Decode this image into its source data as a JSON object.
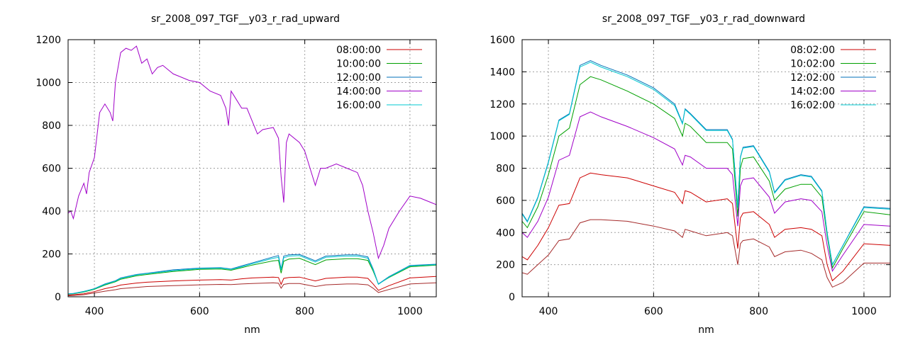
{
  "chart_data": [
    {
      "type": "line",
      "title": "sr_2008_097_TGF__y03_r_rad_upward",
      "xlabel": "nm",
      "ylabel": "",
      "xlim": [
        350,
        1050
      ],
      "ylim": [
        0,
        1200
      ],
      "xticks": [
        400,
        600,
        800,
        1000
      ],
      "yticks": [
        0,
        200,
        400,
        600,
        800,
        1000,
        1200
      ],
      "grid": true,
      "legend_position": "top-right",
      "series": [
        {
          "name": "08:00:00",
          "color": "#a52a2a",
          "x": [
            350,
            360,
            380,
            400,
            420,
            440,
            450,
            480,
            500,
            550,
            600,
            640,
            660,
            680,
            700,
            740,
            750,
            755,
            760,
            770,
            790,
            820,
            840,
            880,
            900,
            920,
            930,
            940,
            960,
            1000,
            1050
          ],
          "y": [
            5,
            6,
            10,
            18,
            26,
            33,
            38,
            44,
            48,
            52,
            56,
            58,
            57,
            60,
            62,
            65,
            63,
            40,
            58,
            62,
            62,
            48,
            56,
            60,
            60,
            56,
            40,
            20,
            34,
            60,
            65
          ]
        },
        {
          "name": "08:00:00",
          "color": "#cc0000",
          "x": [
            350,
            360,
            380,
            400,
            420,
            440,
            450,
            480,
            500,
            550,
            600,
            640,
            660,
            680,
            700,
            740,
            750,
            755,
            760,
            770,
            790,
            820,
            840,
            880,
            900,
            920,
            930,
            940,
            960,
            1000,
            1050
          ],
          "y": [
            8,
            10,
            14,
            24,
            38,
            48,
            55,
            64,
            68,
            74,
            78,
            80,
            78,
            84,
            88,
            92,
            90,
            58,
            86,
            90,
            92,
            74,
            86,
            92,
            92,
            86,
            60,
            30,
            52,
            88,
            95
          ]
        },
        {
          "name": "10:00:00",
          "color": "#00a000",
          "x": [
            350,
            360,
            380,
            400,
            420,
            440,
            450,
            480,
            500,
            550,
            600,
            640,
            660,
            680,
            700,
            740,
            750,
            755,
            760,
            770,
            790,
            820,
            840,
            880,
            900,
            920,
            930,
            940,
            960,
            1000,
            1050
          ],
          "y": [
            12,
            14,
            22,
            35,
            55,
            70,
            82,
            98,
            104,
            118,
            128,
            130,
            124,
            136,
            148,
            168,
            170,
            110,
            166,
            176,
            180,
            150,
            172,
            178,
            178,
            170,
            120,
            60,
            90,
            140,
            148
          ]
        },
        {
          "name": "12:00:00",
          "color": "#0072b8",
          "x": [
            350,
            360,
            380,
            400,
            420,
            440,
            450,
            480,
            500,
            550,
            600,
            640,
            660,
            680,
            700,
            740,
            750,
            755,
            760,
            770,
            790,
            820,
            840,
            880,
            900,
            920,
            930,
            940,
            960,
            1000,
            1050
          ],
          "y": [
            14,
            16,
            25,
            38,
            60,
            75,
            88,
            104,
            110,
            126,
            134,
            136,
            130,
            144,
            158,
            186,
            192,
            130,
            190,
            196,
            198,
            168,
            190,
            196,
            196,
            186,
            130,
            60,
            94,
            146,
            152
          ]
        },
        {
          "name": "14:00:00",
          "color": "#a000c8",
          "x": [
            350,
            355,
            360,
            370,
            380,
            385,
            390,
            400,
            410,
            420,
            430,
            435,
            440,
            450,
            460,
            470,
            480,
            490,
            500,
            510,
            520,
            530,
            540,
            550,
            560,
            580,
            600,
            620,
            640,
            650,
            655,
            660,
            670,
            680,
            690,
            700,
            710,
            720,
            740,
            750,
            755,
            760,
            765,
            770,
            790,
            800,
            820,
            830,
            840,
            860,
            880,
            900,
            910,
            920,
            930,
            940,
            950,
            960,
            980,
            1000,
            1020,
            1040,
            1050
          ],
          "y": [
            390,
            400,
            365,
            470,
            530,
            480,
            580,
            650,
            860,
            900,
            860,
            820,
            1000,
            1140,
            1160,
            1150,
            1170,
            1090,
            1110,
            1040,
            1070,
            1080,
            1060,
            1040,
            1030,
            1010,
            1000,
            960,
            940,
            880,
            800,
            960,
            920,
            880,
            880,
            820,
            760,
            780,
            790,
            740,
            560,
            440,
            720,
            760,
            720,
            680,
            520,
            600,
            600,
            620,
            600,
            580,
            520,
            400,
            300,
            180,
            240,
            320,
            400,
            470,
            460,
            440,
            430
          ]
        },
        {
          "name": "16:00:00",
          "color": "#00c8d0",
          "x": [
            350,
            360,
            380,
            400,
            420,
            440,
            450,
            480,
            500,
            550,
            600,
            640,
            660,
            680,
            700,
            740,
            750,
            755,
            760,
            770,
            790,
            820,
            840,
            880,
            900,
            920,
            930,
            940,
            960,
            1000,
            1050
          ],
          "y": [
            13,
            15,
            24,
            37,
            58,
            73,
            86,
            102,
            108,
            122,
            132,
            134,
            128,
            140,
            154,
            180,
            184,
            124,
            182,
            190,
            192,
            162,
            184,
            190,
            190,
            180,
            126,
            58,
            92,
            144,
            150
          ]
        }
      ]
    },
    {
      "type": "line",
      "title": "sr_2008_097_TGF__y03_r_rad_downward",
      "xlabel": "nm",
      "ylabel": "",
      "xlim": [
        350,
        1050
      ],
      "ylim": [
        0,
        1600
      ],
      "xticks": [
        400,
        600,
        800,
        1000
      ],
      "yticks": [
        0,
        200,
        400,
        600,
        800,
        1000,
        1200,
        1400,
        1600
      ],
      "grid": true,
      "legend_position": "top-right",
      "series": [
        {
          "name": "08:02:00",
          "color": "#a52a2a",
          "x": [
            350,
            360,
            380,
            400,
            420,
            440,
            460,
            480,
            500,
            550,
            600,
            640,
            655,
            660,
            670,
            700,
            740,
            750,
            760,
            765,
            770,
            790,
            820,
            830,
            850,
            880,
            900,
            920,
            930,
            940,
            960,
            1000,
            1050
          ],
          "y": [
            150,
            140,
            200,
            260,
            350,
            360,
            460,
            480,
            480,
            470,
            440,
            410,
            370,
            420,
            410,
            380,
            400,
            380,
            200,
            330,
            350,
            360,
            310,
            250,
            280,
            290,
            270,
            230,
            120,
            60,
            90,
            210,
            210
          ]
        },
        {
          "name": "08:02:00",
          "color": "#cc0000",
          "x": [
            350,
            360,
            380,
            400,
            420,
            440,
            460,
            480,
            500,
            550,
            600,
            640,
            655,
            660,
            670,
            700,
            740,
            750,
            760,
            765,
            770,
            790,
            820,
            830,
            850,
            880,
            900,
            920,
            930,
            940,
            960,
            1000,
            1050
          ],
          "y": [
            250,
            230,
            320,
            430,
            570,
            580,
            740,
            770,
            760,
            740,
            690,
            650,
            580,
            660,
            650,
            590,
            610,
            580,
            300,
            490,
            520,
            530,
            450,
            370,
            420,
            430,
            420,
            380,
            200,
            100,
            160,
            330,
            320
          ]
        },
        {
          "name": "10:02:00",
          "color": "#00a000",
          "x": [
            350,
            360,
            380,
            400,
            420,
            440,
            460,
            480,
            500,
            550,
            600,
            640,
            655,
            660,
            670,
            700,
            740,
            750,
            760,
            765,
            770,
            790,
            820,
            830,
            850,
            880,
            900,
            920,
            930,
            940,
            960,
            1000,
            1050
          ],
          "y": [
            470,
            430,
            560,
            760,
            1000,
            1050,
            1320,
            1370,
            1350,
            1280,
            1200,
            1110,
            1000,
            1080,
            1060,
            960,
            960,
            920,
            500,
            800,
            860,
            870,
            720,
            600,
            670,
            700,
            700,
            620,
            380,
            180,
            300,
            530,
            510
          ]
        },
        {
          "name": "12:02:00",
          "color": "#0072b8",
          "x": [
            350,
            360,
            380,
            400,
            420,
            440,
            460,
            480,
            500,
            550,
            600,
            640,
            655,
            660,
            670,
            700,
            740,
            750,
            760,
            765,
            770,
            790,
            820,
            830,
            850,
            880,
            900,
            920,
            930,
            940,
            960,
            1000,
            1050
          ],
          "y": [
            520,
            470,
            620,
            840,
            1100,
            1140,
            1440,
            1470,
            1440,
            1380,
            1300,
            1200,
            1080,
            1170,
            1140,
            1040,
            1040,
            980,
            560,
            870,
            930,
            940,
            780,
            650,
            730,
            760,
            750,
            660,
            400,
            200,
            320,
            560,
            550
          ]
        },
        {
          "name": "14:02:00",
          "color": "#a000c8",
          "x": [
            350,
            360,
            380,
            400,
            420,
            440,
            460,
            480,
            500,
            550,
            600,
            640,
            655,
            660,
            670,
            700,
            740,
            750,
            760,
            765,
            770,
            790,
            820,
            830,
            850,
            880,
            900,
            920,
            930,
            940,
            960,
            1000,
            1050
          ],
          "y": [
            400,
            370,
            470,
            620,
            850,
            880,
            1120,
            1150,
            1120,
            1060,
            990,
            920,
            820,
            880,
            870,
            800,
            800,
            760,
            440,
            690,
            730,
            740,
            620,
            520,
            590,
            610,
            600,
            530,
            320,
            160,
            260,
            450,
            440
          ]
        },
        {
          "name": "16:02:00",
          "color": "#00c8d0",
          "x": [
            350,
            360,
            380,
            400,
            420,
            440,
            460,
            480,
            500,
            550,
            600,
            640,
            655,
            660,
            670,
            700,
            740,
            750,
            760,
            765,
            770,
            790,
            820,
            830,
            850,
            880,
            900,
            920,
            930,
            940,
            960,
            1000,
            1050
          ],
          "y": [
            515,
            465,
            615,
            835,
            1095,
            1135,
            1430,
            1460,
            1430,
            1370,
            1290,
            1190,
            1075,
            1165,
            1135,
            1035,
            1035,
            975,
            555,
            865,
            925,
            935,
            775,
            645,
            725,
            755,
            745,
            655,
            395,
            198,
            318,
            555,
            545
          ]
        }
      ]
    }
  ]
}
